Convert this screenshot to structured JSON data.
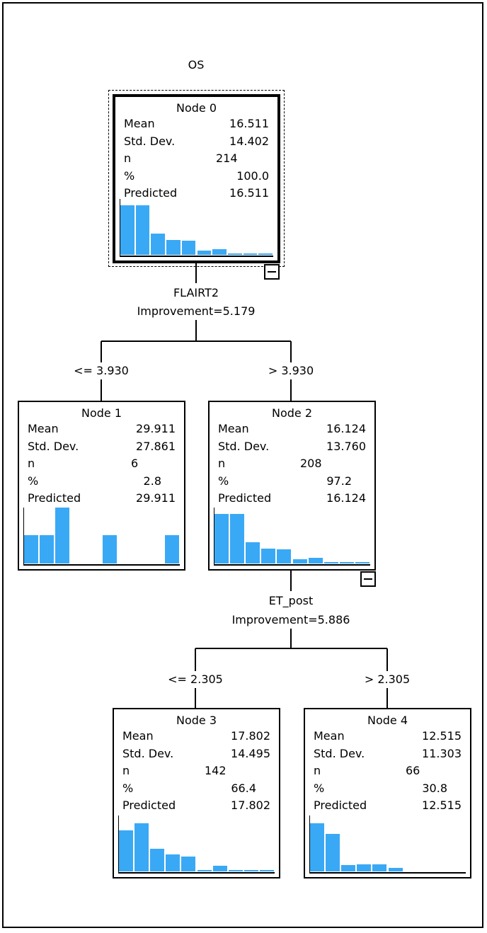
{
  "root_title": "OS",
  "colors": {
    "bar": "#3aa9f5",
    "line": "#000000"
  },
  "nodes": [
    {
      "id": "node0",
      "title": "Node 0",
      "mean": "16.511",
      "std_dev": "14.402",
      "n": "214",
      "pct": "100.0",
      "predicted": "16.511",
      "histogram": [
        0.88,
        0.88,
        0.38,
        0.27,
        0.25,
        0.07,
        0.1,
        0.03,
        0.03,
        0.03
      ]
    },
    {
      "id": "node1",
      "title": "Node 1",
      "mean": "29.911",
      "std_dev": "27.861",
      "n": "6",
      "pct": "2.8",
      "predicted": "29.911",
      "histogram": [
        0.5,
        0.5,
        1.0,
        0,
        0,
        0.5,
        0,
        0,
        0,
        0.5
      ]
    },
    {
      "id": "node2",
      "title": "Node 2",
      "mean": "16.124",
      "std_dev": "13.760",
      "n": "208",
      "pct": "97.2",
      "predicted": "16.124",
      "histogram": [
        0.88,
        0.88,
        0.38,
        0.27,
        0.25,
        0.07,
        0.1,
        0.03,
        0.03,
        0.03
      ]
    },
    {
      "id": "node3",
      "title": "Node 3",
      "mean": "17.802",
      "std_dev": "14.495",
      "n": "142",
      "pct": "66.4",
      "predicted": "17.802",
      "histogram": [
        0.73,
        0.86,
        0.4,
        0.3,
        0.27,
        0.03,
        0.1,
        0.03,
        0.03,
        0.03
      ]
    },
    {
      "id": "node4",
      "title": "Node 4",
      "mean": "12.515",
      "std_dev": "11.303",
      "n": "66",
      "pct": "30.8",
      "predicted": "12.515",
      "histogram": [
        0.86,
        0.67,
        0.12,
        0.13,
        0.13,
        0.06,
        0,
        0,
        0,
        0
      ]
    }
  ],
  "row_labels": {
    "mean": "Mean",
    "std_dev": "Std. Dev.",
    "n": "n",
    "pct": "%",
    "predicted": "Predicted"
  },
  "splits": [
    {
      "variable": "FLAIRT2",
      "improvement": "Improvement=5.179",
      "left_cond": "<= 3.930",
      "right_cond": "> 3.930"
    },
    {
      "variable": "ET_post",
      "improvement": "Improvement=5.886",
      "left_cond": "<= 2.305",
      "right_cond": "> 2.305"
    }
  ]
}
